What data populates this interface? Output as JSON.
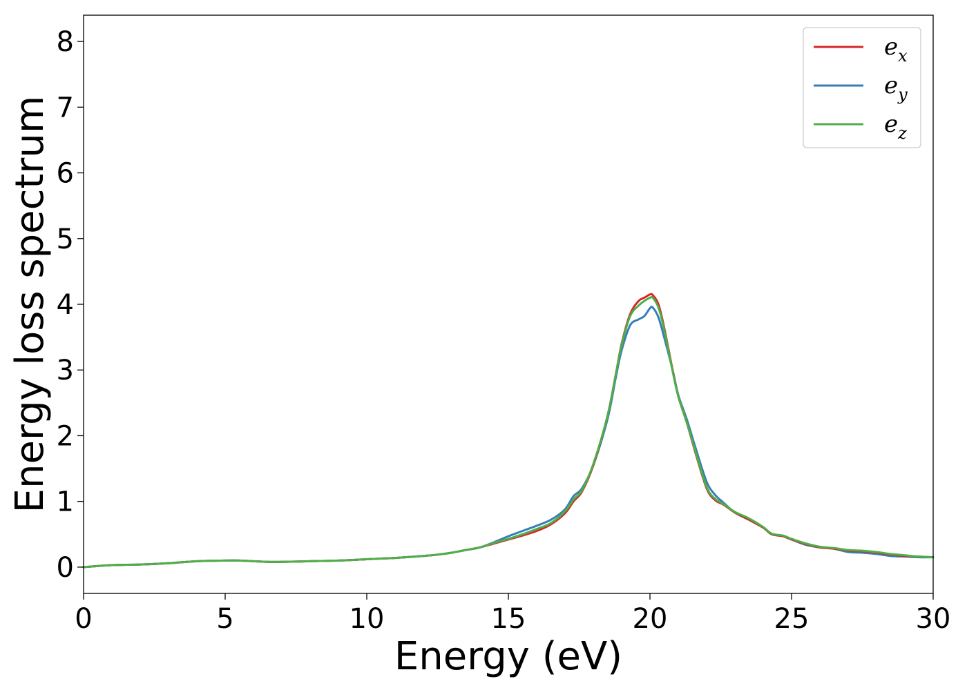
{
  "chart_data": {
    "type": "line",
    "xlabel": "Energy (eV)",
    "ylabel": "Energy loss spectrum",
    "xlim": [
      0,
      30
    ],
    "ylim": [
      -0.4,
      8.4
    ],
    "xticks": [
      0,
      5,
      10,
      15,
      20,
      25,
      30
    ],
    "yticks": [
      0,
      1,
      2,
      3,
      4,
      5,
      6,
      7,
      8
    ],
    "xtick_labels": [
      "0",
      "5",
      "10",
      "15",
      "20",
      "25",
      "30"
    ],
    "ytick_labels": [
      "0",
      "1",
      "2",
      "3",
      "4",
      "5",
      "6",
      "7",
      "8"
    ],
    "grid": false,
    "legend_position": "top-right",
    "series": [
      {
        "name": "e_x",
        "legend_base": "e",
        "legend_sub": "x",
        "color": "#d62728",
        "x": [
          0,
          1,
          2,
          3,
          4,
          5,
          5.5,
          6,
          6.5,
          7,
          8,
          9,
          10,
          10.5,
          11,
          12,
          12.5,
          13,
          13.5,
          14,
          14.5,
          15,
          15.5,
          16,
          16.5,
          17,
          17.3,
          17.6,
          18,
          18.5,
          18.8,
          19,
          19.3,
          19.6,
          19.8,
          20,
          20.1,
          20.3,
          20.5,
          20.8,
          21,
          21.3,
          21.6,
          22,
          22.3,
          22.6,
          23,
          23.5,
          24,
          24.3,
          24.7,
          25,
          25.5,
          26,
          26.5,
          27,
          27.5,
          28,
          28.5,
          29,
          29.5,
          30
        ],
        "y": [
          0.0,
          0.03,
          0.04,
          0.06,
          0.09,
          0.1,
          0.1,
          0.09,
          0.08,
          0.08,
          0.09,
          0.1,
          0.12,
          0.13,
          0.14,
          0.17,
          0.19,
          0.22,
          0.26,
          0.3,
          0.36,
          0.42,
          0.48,
          0.55,
          0.65,
          0.82,
          1.0,
          1.15,
          1.55,
          2.3,
          2.95,
          3.4,
          3.85,
          4.05,
          4.1,
          4.15,
          4.14,
          4.0,
          3.65,
          3.0,
          2.6,
          2.2,
          1.75,
          1.2,
          1.02,
          0.95,
          0.83,
          0.72,
          0.6,
          0.5,
          0.47,
          0.42,
          0.35,
          0.3,
          0.28,
          0.25,
          0.24,
          0.22,
          0.19,
          0.17,
          0.16,
          0.15
        ]
      },
      {
        "name": "e_y",
        "legend_base": "e",
        "legend_sub": "y",
        "color": "#377eb8",
        "x": [
          0,
          1,
          2,
          3,
          4,
          5,
          5.5,
          6,
          6.5,
          7,
          8,
          9,
          10,
          10.5,
          11,
          12,
          12.5,
          13,
          13.5,
          14,
          14.5,
          15,
          15.5,
          16,
          16.5,
          17,
          17.3,
          17.6,
          18,
          18.5,
          18.8,
          19,
          19.3,
          19.6,
          19.8,
          20,
          20.1,
          20.3,
          20.5,
          20.8,
          21,
          21.3,
          21.6,
          22,
          22.3,
          22.6,
          23,
          23.5,
          24,
          24.3,
          24.7,
          25,
          25.5,
          26,
          26.5,
          27,
          27.5,
          28,
          28.5,
          29,
          29.5,
          30
        ],
        "y": [
          0.0,
          0.03,
          0.04,
          0.06,
          0.09,
          0.1,
          0.1,
          0.09,
          0.08,
          0.08,
          0.09,
          0.1,
          0.12,
          0.13,
          0.14,
          0.17,
          0.19,
          0.22,
          0.26,
          0.3,
          0.38,
          0.47,
          0.55,
          0.63,
          0.72,
          0.88,
          1.08,
          1.2,
          1.55,
          2.25,
          2.9,
          3.3,
          3.68,
          3.77,
          3.82,
          3.94,
          3.95,
          3.8,
          3.5,
          3.0,
          2.62,
          2.25,
          1.83,
          1.3,
          1.1,
          0.98,
          0.83,
          0.72,
          0.6,
          0.5,
          0.47,
          0.42,
          0.34,
          0.3,
          0.28,
          0.23,
          0.22,
          0.2,
          0.17,
          0.16,
          0.15,
          0.15
        ]
      },
      {
        "name": "e_z",
        "legend_base": "e",
        "legend_sub": "z",
        "color": "#4daf4a",
        "x": [
          0,
          1,
          2,
          3,
          4,
          5,
          5.5,
          6,
          6.5,
          7,
          8,
          9,
          10,
          10.5,
          11,
          12,
          12.5,
          13,
          13.5,
          14,
          14.5,
          15,
          15.5,
          16,
          16.5,
          17,
          17.3,
          17.6,
          18,
          18.5,
          18.8,
          19,
          19.3,
          19.6,
          19.8,
          20,
          20.1,
          20.3,
          20.5,
          20.8,
          21,
          21.3,
          21.6,
          22,
          22.3,
          22.6,
          23,
          23.5,
          24,
          24.3,
          24.7,
          25,
          25.5,
          26,
          26.5,
          27,
          27.5,
          28,
          28.5,
          29,
          29.5,
          30
        ],
        "y": [
          0.0,
          0.03,
          0.04,
          0.06,
          0.09,
          0.1,
          0.1,
          0.09,
          0.08,
          0.08,
          0.09,
          0.1,
          0.12,
          0.13,
          0.14,
          0.17,
          0.19,
          0.22,
          0.26,
          0.3,
          0.37,
          0.43,
          0.5,
          0.58,
          0.67,
          0.85,
          1.03,
          1.17,
          1.57,
          2.3,
          2.95,
          3.38,
          3.82,
          3.98,
          4.05,
          4.1,
          4.1,
          3.95,
          3.62,
          2.98,
          2.6,
          2.2,
          1.77,
          1.22,
          1.04,
          0.96,
          0.84,
          0.74,
          0.61,
          0.51,
          0.48,
          0.43,
          0.36,
          0.31,
          0.29,
          0.26,
          0.25,
          0.23,
          0.2,
          0.18,
          0.16,
          0.15
        ]
      }
    ]
  }
}
